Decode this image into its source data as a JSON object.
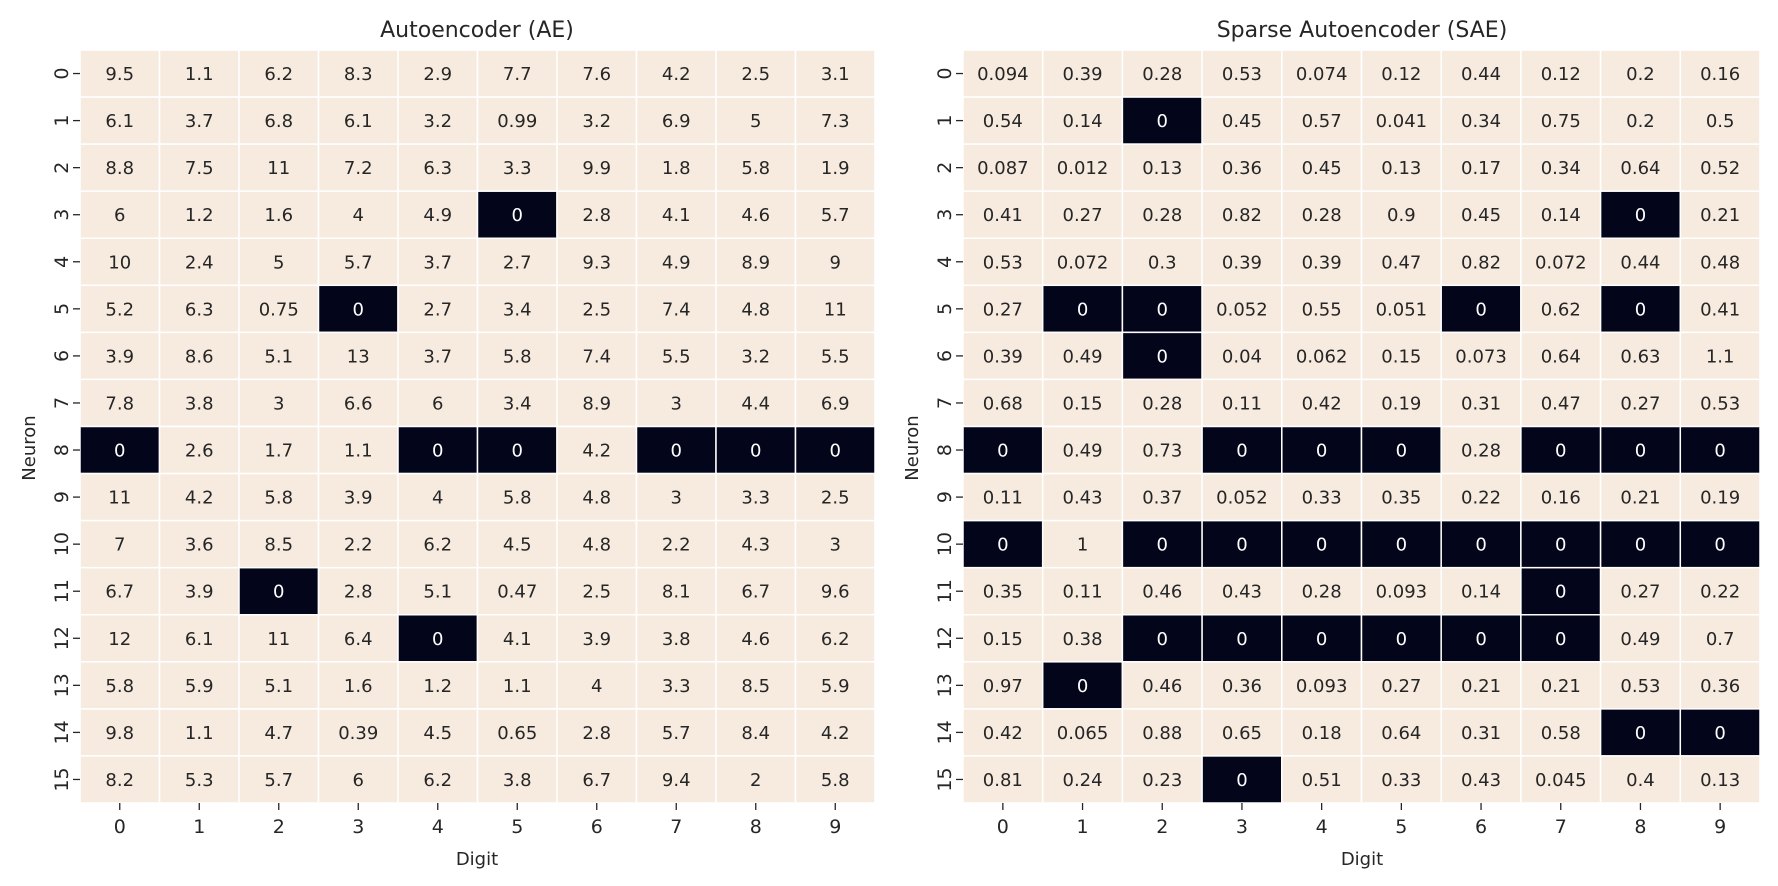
{
  "colors": {
    "high": "#f7ebe0",
    "zero": "#03051a",
    "grid": "#ffffff",
    "text_dark": "#262626",
    "text_light": "#ffffff"
  },
  "chart_data": [
    {
      "type": "heatmap",
      "title": "Autoencoder (AE)",
      "xlabel": "Digit",
      "ylabel": "Neuron",
      "x_ticks": [
        "0",
        "1",
        "2",
        "3",
        "4",
        "5",
        "6",
        "7",
        "8",
        "9"
      ],
      "y_ticks": [
        "0",
        "1",
        "2",
        "3",
        "4",
        "5",
        "6",
        "7",
        "8",
        "9",
        "10",
        "11",
        "12",
        "13",
        "14",
        "15"
      ],
      "colormap": "rocket",
      "values": [
        [
          "9.5",
          "1.1",
          "6.2",
          "8.3",
          "2.9",
          "7.7",
          "7.6",
          "4.2",
          "2.5",
          "3.1"
        ],
        [
          "6.1",
          "3.7",
          "6.8",
          "6.1",
          "3.2",
          "0.99",
          "3.2",
          "6.9",
          "5",
          "7.3"
        ],
        [
          "8.8",
          "7.5",
          "11",
          "7.2",
          "6.3",
          "3.3",
          "9.9",
          "1.8",
          "5.8",
          "1.9"
        ],
        [
          "6",
          "1.2",
          "1.6",
          "4",
          "4.9",
          "0",
          "2.8",
          "4.1",
          "4.6",
          "5.7"
        ],
        [
          "10",
          "2.4",
          "5",
          "5.7",
          "3.7",
          "2.7",
          "9.3",
          "4.9",
          "8.9",
          "9"
        ],
        [
          "5.2",
          "6.3",
          "0.75",
          "0",
          "2.7",
          "3.4",
          "2.5",
          "7.4",
          "4.8",
          "11"
        ],
        [
          "3.9",
          "8.6",
          "5.1",
          "13",
          "3.7",
          "5.8",
          "7.4",
          "5.5",
          "3.2",
          "5.5"
        ],
        [
          "7.8",
          "3.8",
          "3",
          "6.6",
          "6",
          "3.4",
          "8.9",
          "3",
          "4.4",
          "6.9"
        ],
        [
          "0",
          "2.6",
          "1.7",
          "1.1",
          "0",
          "0",
          "4.2",
          "0",
          "0",
          "0"
        ],
        [
          "11",
          "4.2",
          "5.8",
          "3.9",
          "4",
          "5.8",
          "4.8",
          "3",
          "3.3",
          "2.5"
        ],
        [
          "7",
          "3.6",
          "8.5",
          "2.2",
          "6.2",
          "4.5",
          "4.8",
          "2.2",
          "4.3",
          "3"
        ],
        [
          "6.7",
          "3.9",
          "0",
          "2.8",
          "5.1",
          "0.47",
          "2.5",
          "8.1",
          "6.7",
          "9.6"
        ],
        [
          "12",
          "6.1",
          "11",
          "6.4",
          "0",
          "4.1",
          "3.9",
          "3.8",
          "4.6",
          "6.2"
        ],
        [
          "5.8",
          "5.9",
          "5.1",
          "1.6",
          "1.2",
          "1.1",
          "4",
          "3.3",
          "8.5",
          "5.9"
        ],
        [
          "9.8",
          "1.1",
          "4.7",
          "0.39",
          "4.5",
          "0.65",
          "2.8",
          "5.7",
          "8.4",
          "4.2"
        ],
        [
          "8.2",
          "5.3",
          "5.7",
          "6",
          "6.2",
          "3.8",
          "6.7",
          "9.4",
          "2",
          "5.8"
        ]
      ]
    },
    {
      "type": "heatmap",
      "title": "Sparse Autoencoder (SAE)",
      "xlabel": "Digit",
      "ylabel": "Neuron",
      "x_ticks": [
        "0",
        "1",
        "2",
        "3",
        "4",
        "5",
        "6",
        "7",
        "8",
        "9"
      ],
      "y_ticks": [
        "0",
        "1",
        "2",
        "3",
        "4",
        "5",
        "6",
        "7",
        "8",
        "9",
        "10",
        "11",
        "12",
        "13",
        "14",
        "15"
      ],
      "colormap": "rocket",
      "values": [
        [
          "0.094",
          "0.39",
          "0.28",
          "0.53",
          "0.074",
          "0.12",
          "0.44",
          "0.12",
          "0.2",
          "0.16"
        ],
        [
          "0.54",
          "0.14",
          "0",
          "0.45",
          "0.57",
          "0.041",
          "0.34",
          "0.75",
          "0.2",
          "0.5"
        ],
        [
          "0.087",
          "0.012",
          "0.13",
          "0.36",
          "0.45",
          "0.13",
          "0.17",
          "0.34",
          "0.64",
          "0.52"
        ],
        [
          "0.41",
          "0.27",
          "0.28",
          "0.82",
          "0.28",
          "0.9",
          "0.45",
          "0.14",
          "0",
          "0.21"
        ],
        [
          "0.53",
          "0.072",
          "0.3",
          "0.39",
          "0.39",
          "0.47",
          "0.82",
          "0.072",
          "0.44",
          "0.48"
        ],
        [
          "0.27",
          "0",
          "0",
          "0.052",
          "0.55",
          "0.051",
          "0",
          "0.62",
          "0",
          "0.41"
        ],
        [
          "0.39",
          "0.49",
          "0",
          "0.04",
          "0.062",
          "0.15",
          "0.073",
          "0.64",
          "0.63",
          "1.1"
        ],
        [
          "0.68",
          "0.15",
          "0.28",
          "0.11",
          "0.42",
          "0.19",
          "0.31",
          "0.47",
          "0.27",
          "0.53"
        ],
        [
          "0",
          "0.49",
          "0.73",
          "0",
          "0",
          "0",
          "0.28",
          "0",
          "0",
          "0"
        ],
        [
          "0.11",
          "0.43",
          "0.37",
          "0.052",
          "0.33",
          "0.35",
          "0.22",
          "0.16",
          "0.21",
          "0.19"
        ],
        [
          "0",
          "1",
          "0",
          "0",
          "0",
          "0",
          "0",
          "0",
          "0",
          "0"
        ],
        [
          "0.35",
          "0.11",
          "0.46",
          "0.43",
          "0.28",
          "0.093",
          "0.14",
          "0",
          "0.27",
          "0.22"
        ],
        [
          "0.15",
          "0.38",
          "0",
          "0",
          "0",
          "0",
          "0",
          "0",
          "0.49",
          "0.7"
        ],
        [
          "0.97",
          "0",
          "0.46",
          "0.36",
          "0.093",
          "0.27",
          "0.21",
          "0.21",
          "0.53",
          "0.36"
        ],
        [
          "0.42",
          "0.065",
          "0.88",
          "0.65",
          "0.18",
          "0.64",
          "0.31",
          "0.58",
          "0",
          "0"
        ],
        [
          "0.81",
          "0.24",
          "0.23",
          "0",
          "0.51",
          "0.33",
          "0.43",
          "0.045",
          "0.4",
          "0.13"
        ]
      ]
    }
  ]
}
